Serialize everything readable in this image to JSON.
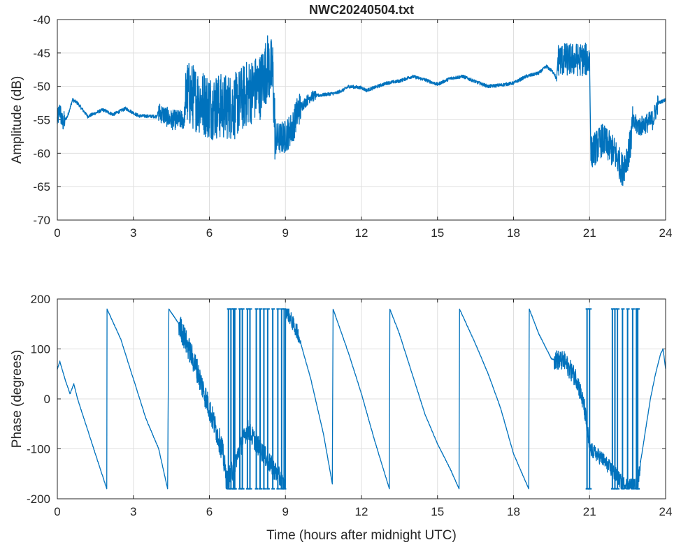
{
  "chart_data": [
    {
      "type": "line",
      "title": "NWC20240504.txt",
      "xlabel": "",
      "ylabel": "Amplitude (dB)",
      "xlim": [
        0,
        24
      ],
      "ylim": [
        -70,
        -40
      ],
      "xticks": [
        0,
        3,
        6,
        9,
        12,
        15,
        18,
        21,
        24
      ],
      "yticks": [
        -40,
        -45,
        -50,
        -55,
        -60,
        -65,
        -70
      ],
      "grid": true,
      "color": "#0072BD",
      "trend": [
        [
          0,
          -55
        ],
        [
          0.1,
          -53.5
        ],
        [
          0.2,
          -55.5
        ],
        [
          0.4,
          -54.5
        ],
        [
          0.6,
          -52
        ],
        [
          0.8,
          -52.5
        ],
        [
          1.2,
          -54.5
        ],
        [
          1.8,
          -53.5
        ],
        [
          2.2,
          -54.2
        ],
        [
          2.7,
          -53.3
        ],
        [
          3.2,
          -54.4
        ],
        [
          3.9,
          -54.5
        ],
        [
          4.0,
          -53.8
        ],
        [
          4.5,
          -55
        ],
        [
          5.0,
          -55
        ],
        [
          5.1,
          -51
        ],
        [
          6,
          -53
        ],
        [
          7,
          -53
        ],
        [
          7.5,
          -51
        ],
        [
          8,
          -50
        ],
        [
          8.3,
          -47
        ],
        [
          8.5,
          -48
        ],
        [
          8.6,
          -58
        ],
        [
          9,
          -57.5
        ],
        [
          9.3,
          -56
        ],
        [
          9.5,
          -53.5
        ],
        [
          10,
          -51.5
        ],
        [
          11,
          -51
        ],
        [
          11.3,
          -50.5
        ],
        [
          11.5,
          -50
        ],
        [
          12,
          -50.2
        ],
        [
          12.2,
          -50.6
        ],
        [
          13,
          -49.5
        ],
        [
          13.5,
          -49.2
        ],
        [
          14,
          -48.5
        ],
        [
          14.5,
          -49
        ],
        [
          15,
          -49.7
        ],
        [
          15.5,
          -48.8
        ],
        [
          16,
          -48.5
        ],
        [
          16.5,
          -49.3
        ],
        [
          17,
          -50
        ],
        [
          17.5,
          -49.8
        ],
        [
          18,
          -49.5
        ],
        [
          18.5,
          -48.5
        ],
        [
          19,
          -48
        ],
        [
          19.3,
          -47
        ],
        [
          19.6,
          -48
        ],
        [
          19.7,
          -49
        ],
        [
          19.75,
          -46
        ],
        [
          21,
          -46
        ],
        [
          21.05,
          -60
        ],
        [
          21.5,
          -58
        ],
        [
          22,
          -60
        ],
        [
          22.3,
          -62.5
        ],
        [
          22.6,
          -59
        ],
        [
          22.7,
          -55.5
        ],
        [
          23,
          -56
        ],
        [
          23.5,
          -55
        ],
        [
          23.7,
          -52.5
        ],
        [
          24,
          -52
        ]
      ],
      "noise_bands": [
        [
          0,
          0.3,
          1.5
        ],
        [
          4.0,
          5.05,
          1.5
        ],
        [
          5.05,
          8.6,
          5
        ],
        [
          8.6,
          9.6,
          2.5
        ],
        [
          9.6,
          10.2,
          0.8
        ],
        [
          19.75,
          21,
          2.5
        ],
        [
          21.05,
          22.7,
          2.5
        ],
        [
          22.7,
          23.7,
          1.5
        ]
      ],
      "wrap_times": []
    },
    {
      "type": "line",
      "title": "",
      "xlabel": "Time (hours after midnight UTC)",
      "ylabel": "Phase (degrees)",
      "xlim": [
        0,
        24
      ],
      "ylim": [
        -200,
        200
      ],
      "xticks": [
        0,
        3,
        6,
        9,
        12,
        15,
        18,
        21,
        24
      ],
      "yticks": [
        200,
        100,
        0,
        -100,
        -200
      ],
      "grid": true,
      "color": "#0072BD",
      "trend": [
        [
          0,
          60
        ],
        [
          0.1,
          75
        ],
        [
          0.3,
          40
        ],
        [
          0.5,
          10
        ],
        [
          0.65,
          30
        ],
        [
          0.8,
          0
        ],
        [
          1.5,
          -110
        ],
        [
          1.95,
          -180
        ],
        [
          1.96,
          180
        ],
        [
          2.5,
          120
        ],
        [
          3,
          40
        ],
        [
          3.5,
          -40
        ],
        [
          4,
          -100
        ],
        [
          4.35,
          -180
        ],
        [
          4.4,
          180
        ],
        [
          4.8,
          150
        ],
        [
          5.5,
          60
        ],
        [
          6,
          -20
        ],
        [
          6.5,
          -100
        ],
        [
          6.7,
          -170
        ],
        [
          7.5,
          -60
        ],
        [
          8,
          -100
        ],
        [
          8.8,
          -160
        ],
        [
          9.0,
          -180
        ],
        [
          9.01,
          180
        ],
        [
          9.5,
          130
        ],
        [
          10,
          40
        ],
        [
          10.5,
          -70
        ],
        [
          10.85,
          -170
        ],
        [
          10.88,
          180
        ],
        [
          11.5,
          90
        ],
        [
          12,
          10
        ],
        [
          12.5,
          -80
        ],
        [
          13.1,
          -180
        ],
        [
          13.12,
          180
        ],
        [
          13.5,
          130
        ],
        [
          14,
          50
        ],
        [
          14.5,
          -30
        ],
        [
          15,
          -90
        ],
        [
          15.5,
          -140
        ],
        [
          15.85,
          -180
        ],
        [
          15.87,
          180
        ],
        [
          16.5,
          110
        ],
        [
          17,
          50
        ],
        [
          17.5,
          -20
        ],
        [
          18,
          -110
        ],
        [
          18.6,
          -180
        ],
        [
          18.62,
          180
        ],
        [
          19,
          130
        ],
        [
          19.5,
          80
        ],
        [
          20,
          75
        ],
        [
          20.5,
          40
        ],
        [
          20.8,
          -20
        ],
        [
          21,
          -100
        ],
        [
          21.5,
          -120
        ],
        [
          22,
          -150
        ],
        [
          22.3,
          -170
        ],
        [
          22.8,
          -175
        ],
        [
          22.9,
          -170
        ],
        [
          23,
          -130
        ],
        [
          23.4,
          0
        ],
        [
          23.6,
          50
        ],
        [
          23.8,
          90
        ],
        [
          23.9,
          100
        ],
        [
          24,
          60
        ]
      ],
      "noise_bands": [
        [
          4.8,
          7,
          25
        ],
        [
          7,
          9,
          20
        ],
        [
          9,
          9.6,
          15
        ],
        [
          19.6,
          21,
          20
        ],
        [
          21,
          23,
          15
        ]
      ],
      "wrap_times": [
        6.75,
        6.85,
        6.95,
        7.0,
        7.2,
        7.3,
        7.5,
        7.6,
        7.85,
        8.0,
        8.15,
        8.3,
        8.5,
        8.7,
        8.85,
        8.95,
        20.9,
        21.0,
        21.9,
        22.0,
        22.1,
        22.3,
        22.5,
        22.7,
        22.85,
        22.9
      ]
    }
  ]
}
